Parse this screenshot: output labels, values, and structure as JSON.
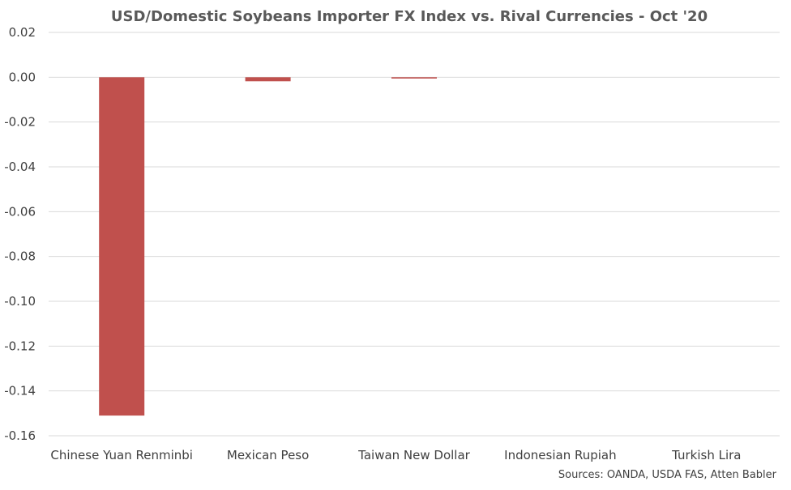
{
  "chart_data": {
    "type": "bar",
    "title": "USD/Domestic Soybeans Importer FX Index vs. Rival Currencies - Oct '20",
    "categories": [
      "Chinese Yuan Renminbi",
      "Mexican Peso",
      "Taiwan New Dollar",
      "Indonesian Rupiah",
      "Turkish Lira"
    ],
    "values": [
      -0.151,
      -0.0018,
      -0.0006,
      0.0,
      0.0
    ],
    "ylim": [
      -0.16,
      0.02
    ],
    "yticks": [
      "0.02",
      "0.00",
      "-0.02",
      "-0.04",
      "-0.06",
      "-0.08",
      "-0.10",
      "-0.12",
      "-0.14",
      "-0.16"
    ],
    "ytick_values": [
      0.02,
      0.0,
      -0.02,
      -0.04,
      -0.06,
      -0.08,
      -0.1,
      -0.12,
      -0.14,
      -0.16
    ],
    "grid": true,
    "bar_color": "#C0504D",
    "grid_color": "#D9D9D9",
    "source": "Sources: OANDA, USDA FAS, Atten Babler"
  }
}
